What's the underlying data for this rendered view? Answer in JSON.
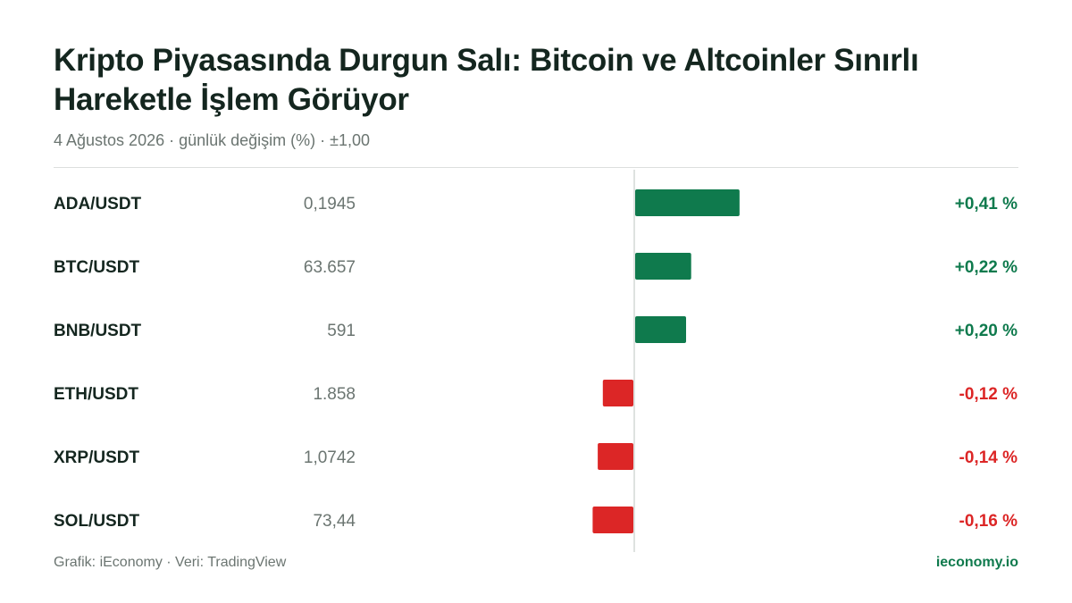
{
  "header": {
    "title": "Kripto Piyasasında Durgun Salı: Bitcoin ve Altcoinler Sınırlı Hareketle İşlem Görüyor",
    "subtitle": "4 Ağustos 2026 · günlük değişim (%) · ±1,00"
  },
  "footer": {
    "source": "Grafik: iEconomy · Veri: TradingView",
    "brand": "ieconomy.io"
  },
  "colors": {
    "positive": "#0f7a4d",
    "negative": "#dc2626",
    "zero_line": "#d4d8d6"
  },
  "chart_data": {
    "type": "bar",
    "orientation": "horizontal",
    "categories": [
      "ADA/USDT",
      "BTC/USDT",
      "BNB/USDT",
      "ETH/USDT",
      "XRP/USDT",
      "SOL/USDT"
    ],
    "prices": [
      "0,1945",
      "63.657",
      "591",
      "1.858",
      "1,0742",
      "73,44"
    ],
    "values": [
      0.41,
      0.22,
      0.2,
      -0.12,
      -0.14,
      -0.16
    ],
    "value_labels": [
      "+0,41 %",
      "+0,22 %",
      "+0,20 %",
      "-0,12 %",
      "-0,14 %",
      "-0,16 %"
    ],
    "xlim": [
      -1,
      1
    ],
    "grid": false
  }
}
